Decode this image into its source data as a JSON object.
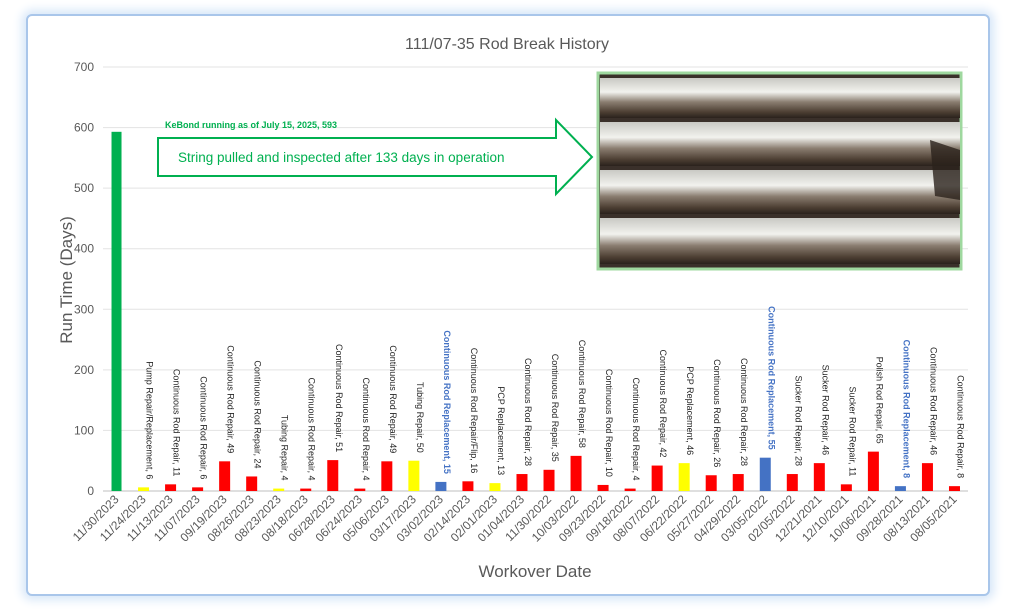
{
  "chart_data": {
    "type": "bar",
    "title": "111/07-35 Rod Break History",
    "xlabel": "Workover Date",
    "ylabel": "Run Time (Days)",
    "ylim": [
      0,
      700
    ],
    "yticks": [
      0,
      100,
      200,
      300,
      400,
      500,
      600,
      700
    ],
    "grid": true,
    "colors": {
      "green": "#00b050",
      "yellow": "#ffff00",
      "red": "#ff0000",
      "blue": "#4472c4"
    },
    "categories": [
      "11/30/2023",
      "11/24/2023",
      "11/13/2023",
      "11/07/2023",
      "09/19/2023",
      "08/26/2023",
      "08/23/2023",
      "08/18/2023",
      "06/28/2023",
      "06/24/2023",
      "05/06/2023",
      "03/17/2023",
      "03/02/2023",
      "02/14/2023",
      "02/01/2023",
      "01/04/2023",
      "11/30/2022",
      "10/03/2022",
      "09/23/2022",
      "09/18/2022",
      "08/07/2022",
      "06/22/2022",
      "05/27/2022",
      "04/29/2022",
      "03/05/2022",
      "02/05/2022",
      "12/21/2021",
      "12/10/2021",
      "10/06/2021",
      "09/28/2021",
      "08/13/2021",
      "08/05/2021"
    ],
    "values": [
      593,
      6,
      11,
      6,
      49,
      24,
      4,
      4,
      51,
      4,
      49,
      50,
      15,
      16,
      13,
      28,
      35,
      58,
      10,
      4,
      42,
      46,
      26,
      28,
      55,
      28,
      46,
      11,
      65,
      8,
      46,
      8
    ],
    "bar_colors": [
      "green",
      "yellow",
      "red",
      "red",
      "red",
      "red",
      "yellow",
      "red",
      "red",
      "red",
      "red",
      "yellow",
      "blue",
      "red",
      "yellow",
      "red",
      "red",
      "red",
      "red",
      "red",
      "red",
      "yellow",
      "red",
      "red",
      "blue",
      "red",
      "red",
      "red",
      "red",
      "blue",
      "red",
      "red"
    ],
    "data_labels": [
      "KeBond running as of July 15, 2025, 593",
      "Pump Repair/Replacement, 6",
      "Continuous Rod Repair, 11",
      "Continuous Rod Repair, 6",
      "Continuous Rod Repair, 49",
      "Continuous Rod Repair, 24",
      "Tubing Repair, 4",
      "Continuous Rod Repair, 4",
      "Continuous Rod Repair, 51",
      "Continuous Rod Repair, 4",
      "Continuous Rod Repair, 49",
      "Tubing Repair, 50",
      "Continuous Rod Replacement, 15",
      "Continuous Rod Repair/Flip, 16",
      "PCP Replacement, 13",
      "Continuous Rod Repair, 28",
      "Continuous Rod Repair, 35",
      "Continuous Rod Repair, 58",
      "Continuous Rod Repair, 10",
      "Continuous Rod Repair, 4",
      "Continuous Rod Repair, 42",
      "PCP Replacement, 46",
      "Continuous Rod Repair, 26",
      "Continuous Rod Repair, 28",
      "Continuous Rod Replacement, 55",
      "Sucker Rod Repair, 28",
      "Sucker Rod Repair, 46",
      "Sucker Rod Repair, 11",
      "Polish Rod Repair, 65",
      "Continuous Rod Replacement, 8",
      "Continuous Rod Repair, 46",
      "Continuous Rod Repair, 8"
    ],
    "label_colors": [
      "green",
      "dark",
      "dark",
      "dark",
      "dark",
      "dark",
      "dark",
      "dark",
      "dark",
      "dark",
      "dark",
      "dark",
      "blue",
      "dark",
      "dark",
      "dark",
      "dark",
      "dark",
      "dark",
      "dark",
      "dark",
      "dark",
      "dark",
      "dark",
      "blue",
      "dark",
      "dark",
      "dark",
      "dark",
      "blue",
      "dark",
      "dark"
    ],
    "label_palette": {
      "green": "#00b050",
      "dark": "#262626",
      "blue": "#4472c4"
    },
    "annotation": {
      "text": "String pulled and inspected after 133 days in operation",
      "color": "#00b050"
    }
  }
}
